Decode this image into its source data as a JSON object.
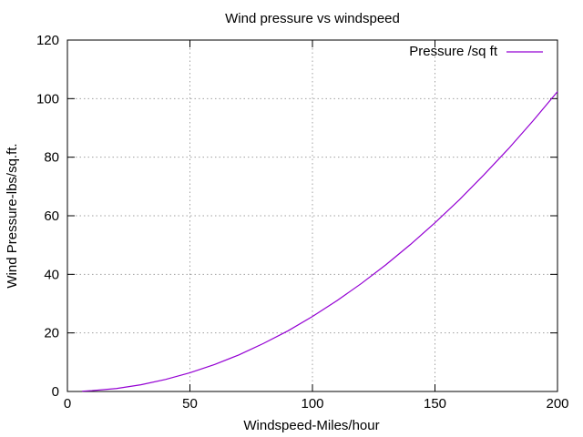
{
  "chart_data": {
    "type": "line",
    "title": "Wind pressure vs windspeed",
    "xlabel": "Windspeed-Miles/hour",
    "ylabel": "Wind Pressure-lbs/sq.ft.",
    "xlim": [
      0,
      200
    ],
    "ylim": [
      0,
      120
    ],
    "xticks": [
      "0",
      "50",
      "100",
      "150",
      "200"
    ],
    "yticks": [
      "0",
      "20",
      "40",
      "60",
      "80",
      "100",
      "120"
    ],
    "grid": true,
    "legend_position": "top-right",
    "series": [
      {
        "name": "Pressure /sq ft",
        "color": "#9400d3",
        "x": [
          6,
          10,
          20,
          30,
          40,
          50,
          60,
          70,
          80,
          90,
          100,
          110,
          120,
          130,
          140,
          150,
          160,
          170,
          180,
          190,
          200
        ],
        "y": [
          0.1,
          0.3,
          1.0,
          2.3,
          4.1,
          6.4,
          9.2,
          12.5,
          16.4,
          20.7,
          25.6,
          31.0,
          36.9,
          43.3,
          50.2,
          57.6,
          65.5,
          74.0,
          82.9,
          92.4,
          102.4
        ]
      }
    ]
  }
}
